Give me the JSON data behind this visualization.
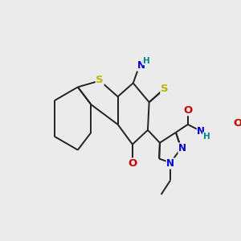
{
  "bg_color": "#ebebeb",
  "bond_color": "#222222",
  "bond_width": 1.4,
  "dbo": 0.012,
  "atom_colors": {
    "S": "#b8b800",
    "N": "#0000cc",
    "O": "#cc0000",
    "H": "#008888",
    "C": "#222222"
  },
  "fs": 8.5,
  "figsize": [
    3.0,
    3.0
  ],
  "dpi": 100
}
